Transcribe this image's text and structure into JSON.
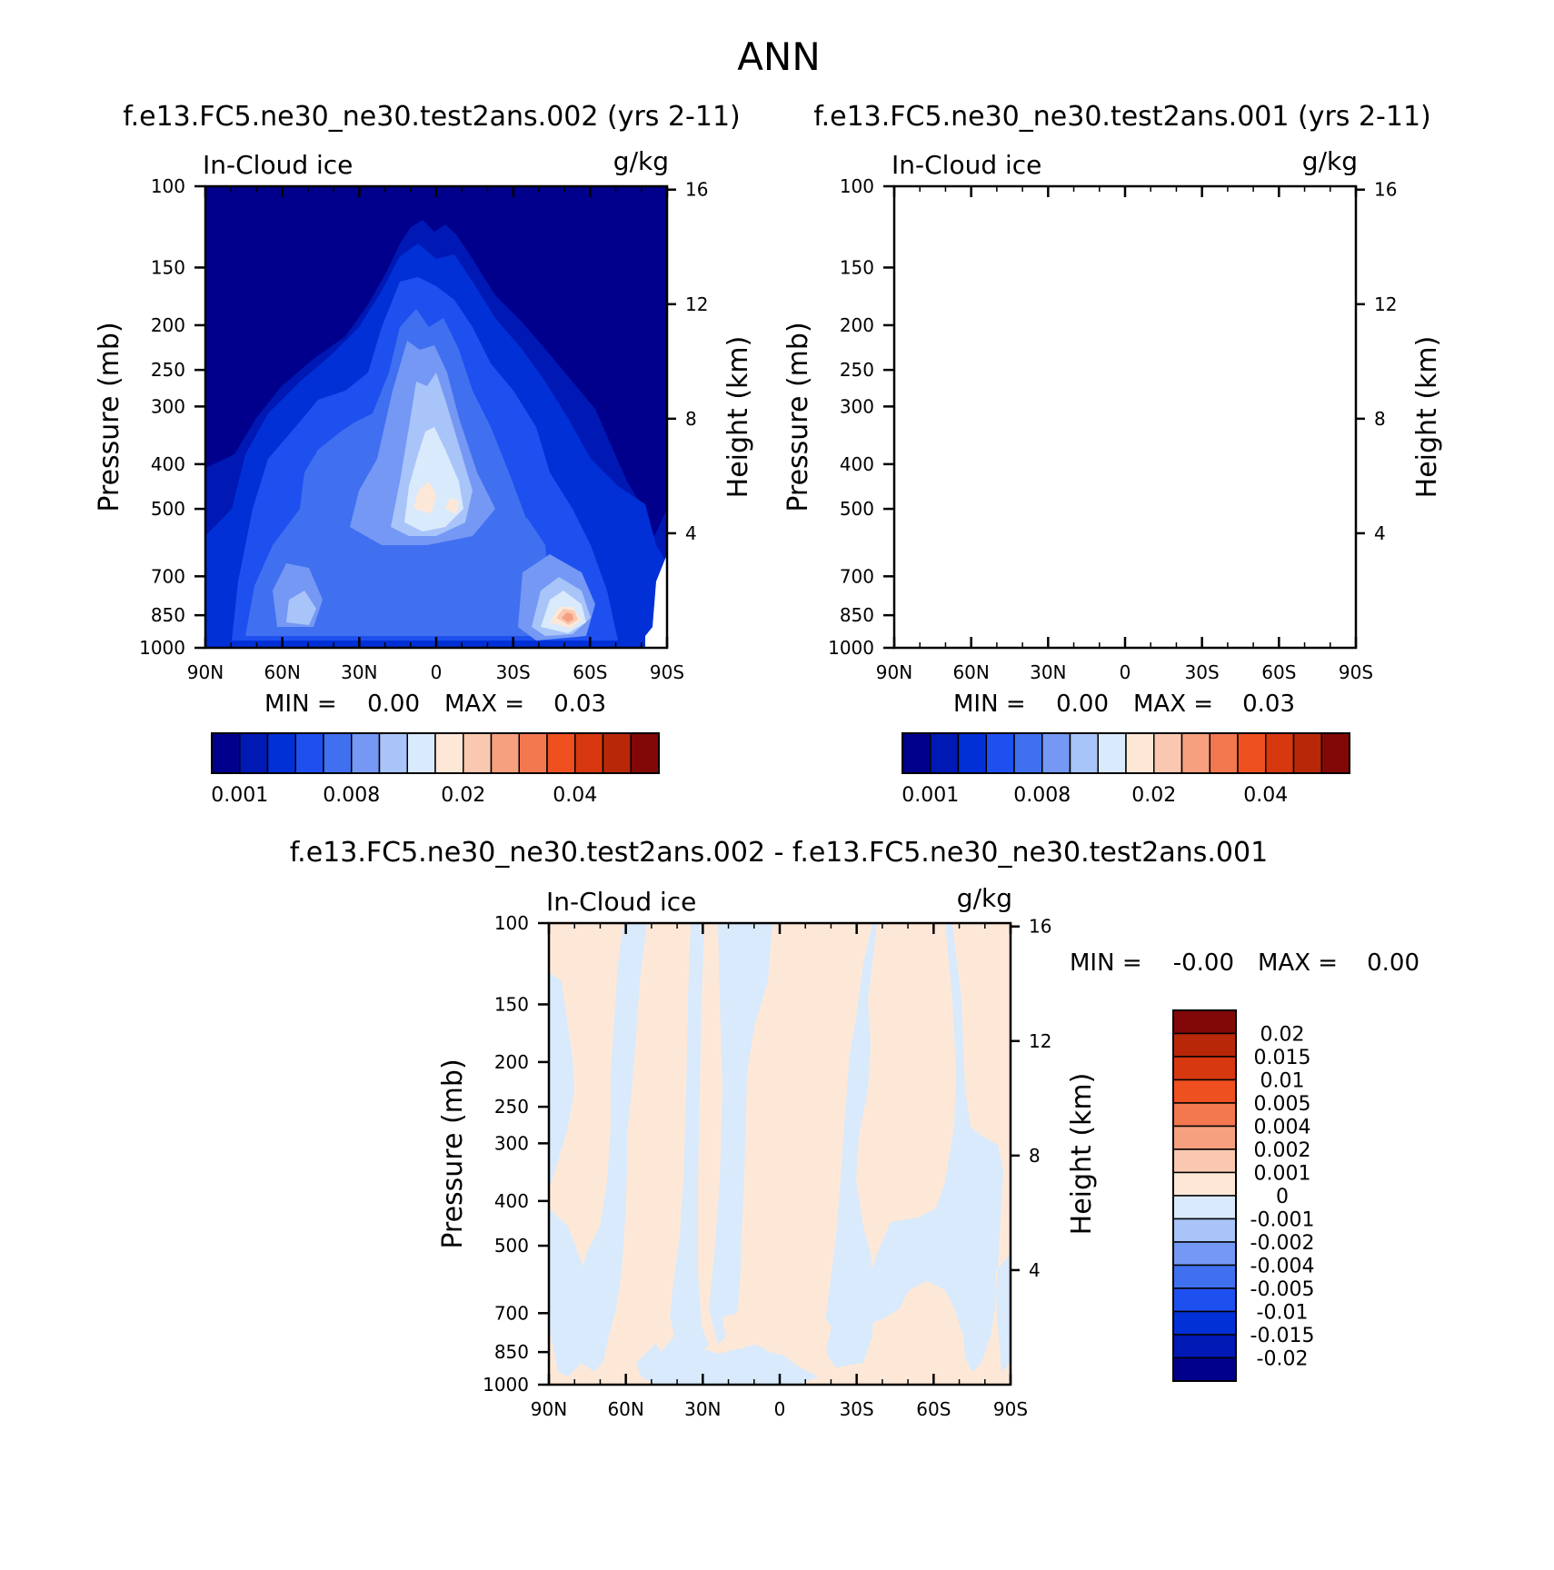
{
  "figure": {
    "title": "ANN"
  },
  "colors": {
    "base_scale": [
      "#00008c",
      "#0018b4",
      "#0030d6",
      "#1e50f0",
      "#4070f0",
      "#7498f4",
      "#a8c4f8",
      "#d8eafc",
      "#fde8d8",
      "#fac8b0",
      "#f6a080",
      "#f37850",
      "#ef5020",
      "#d83810",
      "#b82808",
      "#820808"
    ],
    "diff_scale": [
      "#00008c",
      "#0018b4",
      "#0030d6",
      "#1e50f0",
      "#4070f0",
      "#7498f4",
      "#a8c4f8",
      "#d8eafc",
      "#fde8d8",
      "#fac8b0",
      "#f6a080",
      "#f37850",
      "#ef5020",
      "#d83810",
      "#b82808",
      "#820808"
    ]
  },
  "chart_data": [
    {
      "type": "heatmap",
      "title": "f.e13.FC5.ne30_ne30.test2ans.002 (yrs 2-11)",
      "left_label": "In-Cloud ice",
      "right_label": "g/kg",
      "ylabel": "Pressure (mb)",
      "y2label": "Height (km)",
      "x_ticks": [
        "90N",
        "60N",
        "30N",
        "0",
        "30S",
        "60S",
        "90S"
      ],
      "y_ticks": [
        "100",
        "150",
        "200",
        "250",
        "300",
        "400",
        "500",
        "700",
        "850",
        "1000"
      ],
      "y2_ticks": [
        "16",
        "12",
        "8",
        "4"
      ],
      "min_label": "MIN =",
      "min_value": "0.00",
      "max_label": "MAX =",
      "max_value": "0.03",
      "colorbar_labels": [
        "0.001",
        "0.008",
        "0.02",
        "0.04"
      ]
    },
    {
      "type": "heatmap",
      "title": "f.e13.FC5.ne30_ne30.test2ans.001 (yrs 2-11)",
      "left_label": "In-Cloud ice",
      "right_label": "g/kg",
      "ylabel": "Pressure (mb)",
      "y2label": "Height (km)",
      "x_ticks": [
        "90N",
        "60N",
        "30N",
        "0",
        "30S",
        "60S",
        "90S"
      ],
      "y_ticks": [
        "100",
        "150",
        "200",
        "250",
        "300",
        "400",
        "500",
        "700",
        "850",
        "1000"
      ],
      "y2_ticks": [
        "16",
        "12",
        "8",
        "4"
      ],
      "min_label": "MIN =",
      "min_value": "0.00",
      "max_label": "MAX =",
      "max_value": "0.03",
      "colorbar_labels": [
        "0.001",
        "0.008",
        "0.02",
        "0.04"
      ]
    },
    {
      "type": "heatmap",
      "title": "f.e13.FC5.ne30_ne30.test2ans.002 - f.e13.FC5.ne30_ne30.test2ans.001",
      "left_label": "In-Cloud ice",
      "right_label": "g/kg",
      "ylabel": "Pressure (mb)",
      "y2label": "Height (km)",
      "x_ticks": [
        "90N",
        "60N",
        "30N",
        "0",
        "30S",
        "60S",
        "90S"
      ],
      "y_ticks": [
        "100",
        "150",
        "200",
        "250",
        "300",
        "400",
        "500",
        "700",
        "850",
        "1000"
      ],
      "y2_ticks": [
        "16",
        "12",
        "8",
        "4"
      ],
      "min_label": "MIN =",
      "min_value": "-0.00",
      "max_label": "MAX =",
      "max_value": "0.00",
      "colorbar_labels": [
        "0.02",
        "0.015",
        "0.01",
        "0.005",
        "0.004",
        "0.002",
        "0.001",
        "0",
        "-0.001",
        "-0.002",
        "-0.004",
        "-0.005",
        "-0.01",
        "-0.015",
        "-0.02"
      ]
    }
  ]
}
